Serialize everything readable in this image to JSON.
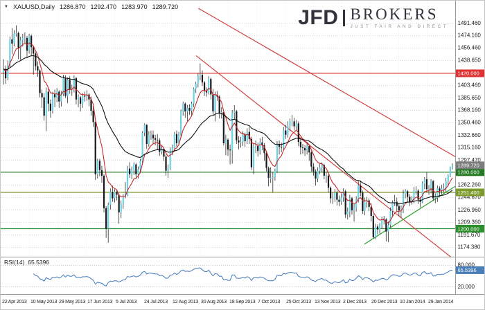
{
  "header": {
    "dropdown_icon": "▼",
    "symbol": "XAUUSD,Daily",
    "open": "1286.870",
    "high": "1292.470",
    "low": "1283.970",
    "close": "1289.720"
  },
  "logo": {
    "name": "JFD",
    "word": "BROKERS",
    "tagline": "JUST FAIR AND DIRECT"
  },
  "chart_data": {
    "type": "candlestick",
    "symbol": "XAUUSD",
    "timeframe": "Daily",
    "x_labels": [
      "22 Apr 2013",
      "10 May 2013",
      "29 May 2013",
      "17 Jun 2013",
      "5 Jul 2013",
      "24 Jul 2013",
      "12 Aug 2013",
      "30 Aug 2013",
      "18 Sep 2013",
      "7 Oct 2013",
      "25 Oct 2013",
      "13 Nov 2013",
      "2 Dec 2013",
      "20 Dec 2013",
      "10 Jan 2014",
      "29 Jan 2014"
    ],
    "y_range": {
      "top_price": 1522.8,
      "bottom_price": 1160.3
    },
    "y_ticks": [
      1491.46,
      1474.16,
      1456.46,
      1438.65,
      1421.06,
      1403.46,
      1385.65,
      1368.16,
      1350.46,
      1332.66,
      1315.16,
      1297.47,
      1279.77,
      1262.26,
      1244.67,
      1226.96,
      1209.36,
      1191.67,
      1174.38
    ],
    "price_lines": [
      {
        "label": "1420.000",
        "value": 1420.0,
        "color": "#e03232"
      },
      {
        "label": "1280.000",
        "value": 1280.0,
        "color": "#237a23"
      },
      {
        "label": "1251.400",
        "value": 1251.4,
        "color": "#7d9b2d"
      },
      {
        "label": "1200.000",
        "value": 1200.0,
        "color": "#2c8f2c"
      }
    ],
    "current_price": {
      "label": "1289.720",
      "value": 1289.72,
      "color": "#7d7d7d"
    },
    "trend_lines": [
      {
        "x1": 0.435,
        "p1": 1512,
        "x2": 1.0,
        "p2": 1302,
        "color": "#d34040"
      },
      {
        "x1": 0.43,
        "p1": 1445,
        "x2": 1.0,
        "p2": 1155,
        "color": "#d34040"
      },
      {
        "x1": 0.8,
        "p1": 1178,
        "x2": 1.0,
        "p2": 1260,
        "color": "#35a335"
      }
    ],
    "moving_averages": [
      {
        "name": "fast-ma-line",
        "period": 8,
        "color": "#c62828"
      },
      {
        "name": "slow-ma-line",
        "period": 34,
        "color": "#101010"
      }
    ],
    "candle_colors": {
      "up": "#6fd1e4",
      "down": "#17171c",
      "wick": "#2d2d2d"
    },
    "rsi": {
      "label": "RSI(14)",
      "value": "65.5396",
      "period": 14,
      "color": "#4179bd",
      "badge_color": "#4a7ebb",
      "range": [
        0,
        100
      ],
      "levels": [
        {
          "value": 80,
          "label": "80.000"
        },
        {
          "value": 20,
          "label": "20.000"
        }
      ]
    },
    "candles": [
      [
        1421,
        1440,
        1404,
        1426
      ],
      [
        1426,
        1431,
        1405,
        1413
      ],
      [
        1413,
        1438,
        1410,
        1431
      ],
      [
        1431,
        1472,
        1428,
        1468
      ],
      [
        1468,
        1484,
        1447,
        1462
      ],
      [
        1462,
        1481,
        1458,
        1476
      ],
      [
        1476,
        1488,
        1472,
        1477
      ],
      [
        1477,
        1479,
        1440,
        1456
      ],
      [
        1456,
        1472,
        1439,
        1467
      ],
      [
        1467,
        1476,
        1458,
        1470
      ],
      [
        1470,
        1478,
        1462,
        1470
      ],
      [
        1470,
        1473,
        1443,
        1452
      ],
      [
        1452,
        1476,
        1448,
        1473
      ],
      [
        1473,
        1475,
        1445,
        1457
      ],
      [
        1457,
        1459,
        1418,
        1448
      ],
      [
        1448,
        1450,
        1424,
        1430
      ],
      [
        1430,
        1437,
        1415,
        1424
      ],
      [
        1424,
        1426,
        1386,
        1392
      ],
      [
        1392,
        1397,
        1371,
        1386
      ],
      [
        1386,
        1392,
        1353,
        1360
      ],
      [
        1360,
        1400,
        1338,
        1394
      ],
      [
        1394,
        1398,
        1366,
        1377
      ],
      [
        1377,
        1383,
        1357,
        1367
      ],
      [
        1367,
        1394,
        1363,
        1390
      ],
      [
        1390,
        1397,
        1372,
        1386
      ],
      [
        1386,
        1399,
        1379,
        1394
      ],
      [
        1394,
        1396,
        1371,
        1380
      ],
      [
        1380,
        1395,
        1373,
        1391
      ],
      [
        1391,
        1418,
        1388,
        1413
      ],
      [
        1413,
        1417,
        1385,
        1388
      ],
      [
        1388,
        1414,
        1378,
        1411
      ],
      [
        1411,
        1416,
        1391,
        1397
      ],
      [
        1397,
        1404,
        1388,
        1398
      ],
      [
        1398,
        1417,
        1393,
        1413
      ],
      [
        1413,
        1415,
        1376,
        1383
      ],
      [
        1383,
        1390,
        1372,
        1386
      ],
      [
        1386,
        1388,
        1366,
        1377
      ],
      [
        1377,
        1392,
        1371,
        1388
      ],
      [
        1388,
        1394,
        1380,
        1387
      ],
      [
        1387,
        1396,
        1381,
        1390
      ],
      [
        1390,
        1392,
        1373,
        1383
      ],
      [
        1383,
        1387,
        1360,
        1367
      ],
      [
        1367,
        1374,
        1344,
        1351
      ],
      [
        1351,
        1352,
        1269,
        1277
      ],
      [
        1277,
        1299,
        1271,
        1296
      ],
      [
        1296,
        1299,
        1274,
        1283
      ],
      [
        1283,
        1289,
        1265,
        1275
      ],
      [
        1275,
        1277,
        1223,
        1229
      ],
      [
        1229,
        1232,
        1187,
        1200
      ],
      [
        1200,
        1237,
        1180,
        1234
      ],
      [
        1234,
        1257,
        1227,
        1252
      ],
      [
        1252,
        1261,
        1238,
        1243
      ],
      [
        1243,
        1256,
        1237,
        1252
      ],
      [
        1252,
        1255,
        1240,
        1248
      ],
      [
        1248,
        1250,
        1207,
        1223
      ],
      [
        1223,
        1240,
        1215,
        1235
      ],
      [
        1235,
        1249,
        1228,
        1245
      ],
      [
        1245,
        1266,
        1243,
        1247
      ],
      [
        1247,
        1289,
        1246,
        1285
      ],
      [
        1285,
        1294,
        1272,
        1277
      ],
      [
        1277,
        1288,
        1270,
        1283
      ],
      [
        1283,
        1294,
        1276,
        1291
      ],
      [
        1291,
        1293,
        1270,
        1277
      ],
      [
        1277,
        1288,
        1271,
        1284
      ],
      [
        1284,
        1299,
        1280,
        1296
      ],
      [
        1296,
        1338,
        1293,
        1336
      ],
      [
        1336,
        1349,
        1331,
        1347
      ],
      [
        1347,
        1348,
        1313,
        1320
      ],
      [
        1320,
        1338,
        1316,
        1333
      ],
      [
        1333,
        1339,
        1326,
        1333
      ],
      [
        1333,
        1339,
        1320,
        1328
      ],
      [
        1328,
        1333,
        1318,
        1326
      ],
      [
        1326,
        1334,
        1312,
        1325
      ],
      [
        1325,
        1328,
        1303,
        1309
      ],
      [
        1309,
        1318,
        1305,
        1313
      ],
      [
        1313,
        1315,
        1296,
        1302
      ],
      [
        1302,
        1305,
        1275,
        1282
      ],
      [
        1282,
        1291,
        1272,
        1285
      ],
      [
        1285,
        1315,
        1283,
        1311
      ],
      [
        1311,
        1319,
        1304,
        1314
      ],
      [
        1314,
        1337,
        1309,
        1334
      ],
      [
        1334,
        1339,
        1316,
        1321
      ],
      [
        1321,
        1337,
        1318,
        1334
      ],
      [
        1334,
        1369,
        1330,
        1366
      ],
      [
        1366,
        1380,
        1360,
        1377
      ],
      [
        1377,
        1379,
        1357,
        1366
      ],
      [
        1366,
        1375,
        1352,
        1371
      ],
      [
        1371,
        1376,
        1361,
        1367
      ],
      [
        1367,
        1380,
        1359,
        1377
      ],
      [
        1377,
        1400,
        1372,
        1398
      ],
      [
        1398,
        1408,
        1392,
        1405
      ],
      [
        1405,
        1420,
        1400,
        1416
      ],
      [
        1416,
        1434,
        1410,
        1418
      ],
      [
        1418,
        1424,
        1402,
        1407
      ],
      [
        1407,
        1409,
        1388,
        1395
      ],
      [
        1395,
        1400,
        1387,
        1393
      ],
      [
        1393,
        1416,
        1390,
        1412
      ],
      [
        1412,
        1414,
        1383,
        1390
      ],
      [
        1390,
        1398,
        1361,
        1366
      ],
      [
        1366,
        1394,
        1352,
        1389
      ],
      [
        1389,
        1395,
        1381,
        1387
      ],
      [
        1387,
        1389,
        1356,
        1364
      ],
      [
        1364,
        1372,
        1356,
        1365
      ],
      [
        1365,
        1367,
        1318,
        1321
      ],
      [
        1321,
        1333,
        1304,
        1326
      ],
      [
        1326,
        1328,
        1303,
        1312
      ],
      [
        1312,
        1319,
        1291,
        1311
      ],
      [
        1311,
        1368,
        1292,
        1364
      ],
      [
        1364,
        1375,
        1355,
        1366
      ],
      [
        1366,
        1368,
        1320,
        1325
      ],
      [
        1325,
        1331,
        1312,
        1322
      ],
      [
        1322,
        1330,
        1315,
        1323
      ],
      [
        1323,
        1338,
        1317,
        1333
      ],
      [
        1333,
        1336,
        1316,
        1324
      ],
      [
        1324,
        1342,
        1320,
        1337
      ],
      [
        1337,
        1344,
        1320,
        1327
      ],
      [
        1327,
        1330,
        1283,
        1287
      ],
      [
        1287,
        1321,
        1277,
        1316
      ],
      [
        1316,
        1325,
        1307,
        1317
      ],
      [
        1317,
        1322,
        1302,
        1310
      ],
      [
        1310,
        1328,
        1305,
        1322
      ],
      [
        1322,
        1330,
        1311,
        1318
      ],
      [
        1318,
        1321,
        1296,
        1307
      ],
      [
        1307,
        1309,
        1281,
        1286
      ],
      [
        1286,
        1288,
        1260,
        1272
      ],
      [
        1272,
        1287,
        1265,
        1272
      ],
      [
        1272,
        1280,
        1251,
        1273
      ],
      [
        1273,
        1285,
        1268,
        1282
      ],
      [
        1282,
        1324,
        1279,
        1320
      ],
      [
        1320,
        1325,
        1305,
        1316
      ],
      [
        1316,
        1322,
        1308,
        1315
      ],
      [
        1315,
        1344,
        1311,
        1339
      ],
      [
        1339,
        1347,
        1327,
        1333
      ],
      [
        1333,
        1352,
        1329,
        1346
      ],
      [
        1346,
        1356,
        1338,
        1352
      ],
      [
        1352,
        1361,
        1345,
        1352
      ],
      [
        1352,
        1357,
        1339,
        1345
      ],
      [
        1345,
        1354,
        1340,
        1349
      ],
      [
        1349,
        1352,
        1317,
        1323
      ],
      [
        1323,
        1327,
        1305,
        1315
      ],
      [
        1315,
        1320,
        1306,
        1314
      ],
      [
        1314,
        1318,
        1303,
        1311
      ],
      [
        1311,
        1321,
        1305,
        1317
      ],
      [
        1317,
        1319,
        1296,
        1308
      ],
      [
        1308,
        1310,
        1281,
        1288
      ],
      [
        1288,
        1293,
        1275,
        1281
      ],
      [
        1281,
        1284,
        1261,
        1271
      ],
      [
        1271,
        1287,
        1266,
        1282
      ],
      [
        1282,
        1293,
        1277,
        1286
      ],
      [
        1286,
        1294,
        1280,
        1290
      ],
      [
        1290,
        1292,
        1270,
        1275
      ],
      [
        1275,
        1281,
        1265,
        1275
      ],
      [
        1275,
        1277,
        1251,
        1258
      ],
      [
        1258,
        1260,
        1236,
        1243
      ],
      [
        1243,
        1251,
        1235,
        1243
      ],
      [
        1243,
        1256,
        1238,
        1251
      ],
      [
        1251,
        1254,
        1233,
        1241
      ],
      [
        1241,
        1247,
        1232,
        1238
      ],
      [
        1238,
        1250,
        1234,
        1244
      ],
      [
        1244,
        1257,
        1238,
        1253
      ],
      [
        1253,
        1255,
        1215,
        1220
      ],
      [
        1220,
        1230,
        1213,
        1224
      ],
      [
        1224,
        1248,
        1216,
        1243
      ],
      [
        1243,
        1245,
        1220,
        1226
      ],
      [
        1226,
        1235,
        1210,
        1229
      ],
      [
        1229,
        1246,
        1224,
        1241
      ],
      [
        1241,
        1267,
        1237,
        1261
      ],
      [
        1261,
        1268,
        1246,
        1251
      ],
      [
        1251,
        1254,
        1221,
        1225
      ],
      [
        1225,
        1244,
        1219,
        1238
      ],
      [
        1238,
        1245,
        1230,
        1240
      ],
      [
        1240,
        1243,
        1225,
        1231
      ],
      [
        1231,
        1236,
        1210,
        1218
      ],
      [
        1218,
        1221,
        1186,
        1188
      ],
      [
        1188,
        1207,
        1185,
        1203
      ],
      [
        1203,
        1206,
        1192,
        1199
      ],
      [
        1199,
        1208,
        1193,
        1205
      ],
      [
        1205,
        1217,
        1200,
        1214
      ],
      [
        1214,
        1218,
        1206,
        1213
      ],
      [
        1213,
        1215,
        1182,
        1196
      ],
      [
        1196,
        1210,
        1181,
        1205
      ],
      [
        1205,
        1230,
        1202,
        1225
      ],
      [
        1225,
        1240,
        1217,
        1237
      ],
      [
        1237,
        1248,
        1232,
        1238
      ],
      [
        1238,
        1244,
        1225,
        1232
      ],
      [
        1232,
        1236,
        1218,
        1226
      ],
      [
        1226,
        1233,
        1215,
        1228
      ],
      [
        1228,
        1255,
        1222,
        1249
      ],
      [
        1249,
        1256,
        1243,
        1253
      ],
      [
        1253,
        1255,
        1238,
        1245
      ],
      [
        1245,
        1249,
        1232,
        1238
      ],
      [
        1238,
        1246,
        1234,
        1242
      ],
      [
        1242,
        1259,
        1236,
        1254
      ],
      [
        1254,
        1260,
        1248,
        1254
      ],
      [
        1254,
        1256,
        1235,
        1241
      ],
      [
        1241,
        1245,
        1230,
        1238
      ],
      [
        1238,
        1267,
        1236,
        1264
      ],
      [
        1264,
        1273,
        1256,
        1270
      ],
      [
        1270,
        1280,
        1252,
        1256
      ],
      [
        1256,
        1262,
        1248,
        1256
      ],
      [
        1256,
        1270,
        1250,
        1267
      ],
      [
        1267,
        1269,
        1239,
        1243
      ],
      [
        1243,
        1250,
        1236,
        1244
      ],
      [
        1244,
        1261,
        1238,
        1257
      ],
      [
        1257,
        1260,
        1245,
        1254
      ],
      [
        1254,
        1262,
        1249,
        1257
      ],
      [
        1257,
        1264,
        1251,
        1257
      ],
      [
        1257,
        1272,
        1252,
        1267
      ],
      [
        1267,
        1277,
        1260,
        1275
      ],
      [
        1275,
        1288,
        1273,
        1287
      ],
      [
        1286.87,
        1292.47,
        1283.97,
        1289.72
      ]
    ]
  }
}
